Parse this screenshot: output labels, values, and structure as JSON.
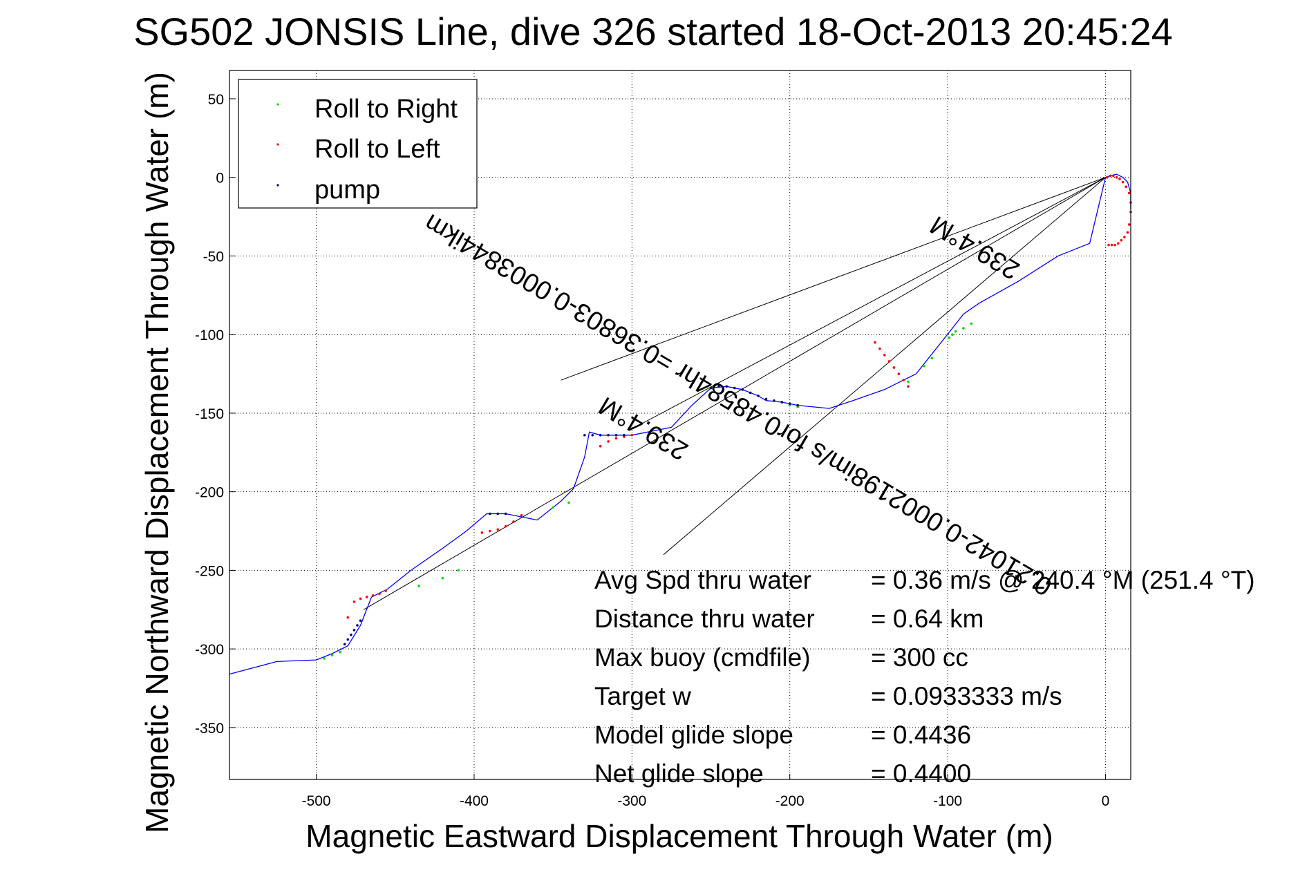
{
  "chart_data": {
    "type": "scatter",
    "title": "SG502 JONSIS Line, dive 326 started 18-Oct-2013 20:45:24",
    "xlabel": "Magnetic Eastward Displacement Through Water (m)",
    "ylabel": "Magnetic Northward Displacement Through Water (m)",
    "xlim": [
      -555,
      16
    ],
    "ylim": [
      -383,
      68
    ],
    "xticks": [
      -500,
      -400,
      -300,
      -200,
      -100,
      0
    ],
    "xtick_labels": [
      "-500",
      "-400",
      "-300",
      "-200",
      "-100",
      "0"
    ],
    "yticks": [
      50,
      0,
      -50,
      -100,
      -150,
      -200,
      -250,
      -300,
      -350
    ],
    "ytick_labels": [
      "50",
      "0",
      "-50",
      "-100",
      "-150",
      "-200",
      "-250",
      "-300",
      "-350"
    ],
    "grid": true,
    "legend": {
      "placement": "top-left",
      "entries": [
        {
          "label": "Roll to Right",
          "color": "#00dd00"
        },
        {
          "label": "Roll to Left",
          "color": "#ff0000"
        },
        {
          "label": "pump",
          "color": "#000080"
        }
      ]
    },
    "track": {
      "color": "#0000ff",
      "x": [
        16,
        16,
        14,
        11,
        7,
        3,
        0,
        -10,
        -30,
        -55,
        -80,
        -90,
        -97,
        -120,
        -140,
        -160,
        -175,
        -195,
        -205,
        -215,
        -220,
        -230,
        -240,
        -250,
        -262,
        -275,
        -300,
        -320,
        -327,
        -330,
        -337,
        -345,
        -360,
        -380,
        -392,
        -405,
        -420,
        -440,
        -455,
        -465,
        -472,
        -480,
        -490,
        -500,
        -525,
        -555
      ],
      "y": [
        -20,
        -10,
        -3,
        0,
        2,
        1,
        0,
        -42,
        -50,
        -66,
        -80,
        -87,
        -96,
        -125,
        -135,
        -142,
        -147,
        -145,
        -143,
        -142,
        -139,
        -135,
        -133,
        -134,
        -145,
        -159,
        -164,
        -164,
        -162,
        -178,
        -198,
        -206,
        -218,
        -214,
        -214,
        -225,
        -236,
        -250,
        -262,
        -267,
        -285,
        -298,
        -303,
        -307,
        -308,
        -316
      ]
    },
    "series": [
      {
        "name": "Roll to Right",
        "color": "#00dd00",
        "x": [
          -85,
          -90,
          -95,
          -97,
          -99,
          -110,
          -115,
          -125,
          -195,
          -200,
          -435,
          -420,
          -410,
          -485,
          -490,
          -495,
          -350,
          -340
        ],
        "y": [
          -93,
          -96,
          -98,
          -100,
          -102,
          -115,
          -120,
          -130,
          -146,
          -145,
          -260,
          -255,
          -250,
          -302,
          -304,
          -306,
          -210,
          -207
        ]
      },
      {
        "name": "Roll to Left",
        "color": "#ff0000",
        "x": [
          15,
          14,
          12,
          10,
          8,
          6,
          4,
          2,
          16,
          16,
          15,
          13,
          11,
          9,
          7,
          5,
          3,
          1,
          -125,
          -128,
          -131,
          -134,
          -137,
          -140,
          -143,
          -146,
          -370,
          -375,
          -380,
          -385,
          -390,
          -395,
          -456,
          -460,
          -464,
          -468,
          -472,
          -476,
          -480,
          -300,
          -305,
          -310,
          -315,
          -320
        ],
        "y": [
          -30,
          -35,
          -38,
          -40,
          -42,
          -43,
          -43,
          -43,
          -22,
          -16,
          -10,
          -6,
          -3,
          -1,
          0,
          1,
          1,
          0,
          -133,
          -129,
          -125,
          -121,
          -117,
          -113,
          -109,
          -105,
          -215,
          -219,
          -222,
          -224,
          -225,
          -226,
          -263,
          -265,
          -266,
          -267,
          -268,
          -270,
          -280,
          -164,
          -165,
          -166,
          -168,
          -171
        ]
      },
      {
        "name": "pump",
        "color": "#000080",
        "x": [
          -195,
          -200,
          -205,
          -210,
          -215,
          -220,
          -225,
          -230,
          -235,
          -240,
          -245,
          -250,
          -330,
          -325,
          -320,
          -315,
          -310,
          -305,
          -380,
          -385,
          -390,
          -472,
          -474,
          -476,
          -478,
          -480,
          -482
        ],
        "y": [
          -145,
          -144,
          -143,
          -142,
          -141,
          -139,
          -137,
          -135,
          -134,
          -133,
          -133,
          -134,
          -164,
          -164,
          -164,
          -164,
          -164,
          -164,
          -214,
          -214,
          -214,
          -282,
          -285,
          -288,
          -291,
          -294,
          -297
        ]
      }
    ],
    "reference_lines": [
      {
        "x": [
          0,
          -345
        ],
        "y": [
          0,
          -129
        ]
      },
      {
        "x": [
          0,
          -280
        ],
        "y": [
          0,
          -240
        ]
      },
      {
        "x": [
          0,
          -470
        ],
        "y": [
          0,
          -275
        ]
      },
      {
        "x": [
          0,
          -300
        ],
        "y": [
          0,
          -160
        ]
      }
    ],
    "rotated_labels": [
      {
        "text": "239.4°M",
        "x": -80,
        "y": -40,
        "angle_deg": 210.6
      },
      {
        "text": "0.21042-0.0002198im/s for0.48584hr =0.36803-0.0003844ikm",
        "x": -230,
        "y": -140,
        "angle_deg": 210.6
      },
      {
        "text": "239.4°M",
        "x": -290,
        "y": -155,
        "angle_deg": 210.6
      }
    ],
    "annotations": [
      {
        "label": "Avg Spd thru water",
        "value": "=  0.36 m/s @ 240.4 °M (251.4 °T)"
      },
      {
        "label": "Distance thru water",
        "value": "=  0.64 km"
      },
      {
        "label": "Max buoy (cmdfile)",
        "value": "= 300 cc"
      },
      {
        "label": "Target w",
        "value": "= 0.0933333 m/s"
      },
      {
        "label": "Model glide slope",
        "value": "= 0.4436"
      },
      {
        "label": "Net glide slope",
        "value": "= 0.4400"
      }
    ]
  }
}
